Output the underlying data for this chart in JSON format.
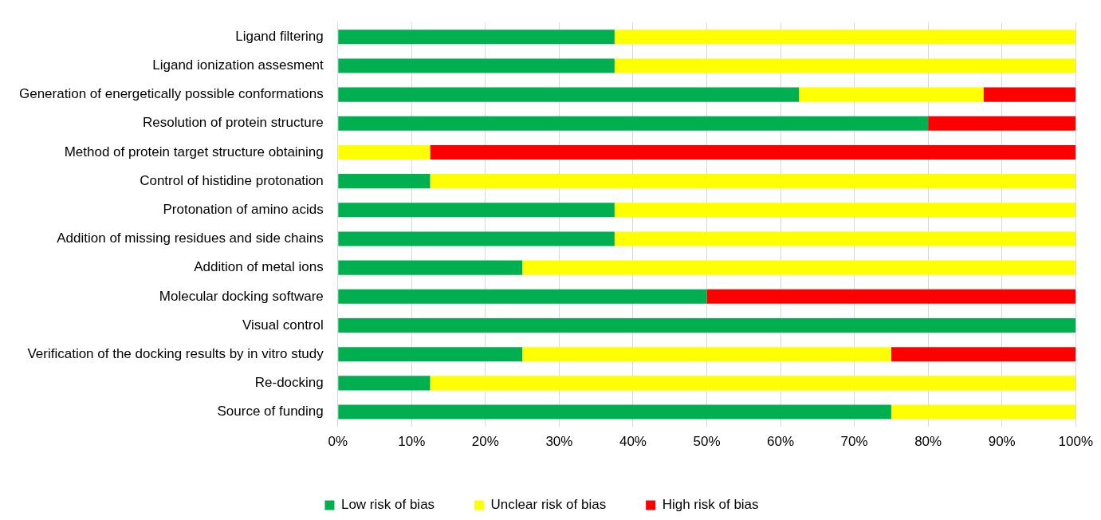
{
  "chart_data": {
    "type": "bar",
    "orientation": "horizontal",
    "stacked": true,
    "categories": [
      "Ligand filtering",
      "Ligand ionization assesment",
      "Generation of energetically possible conformations",
      "Resolution of protein structure",
      "Method of protein target structure obtaining",
      "Control of histidine protonation",
      "Protonation of amino acids",
      "Addition of missing residues and side chains",
      "Addition of metal ions",
      "Molecular docking software",
      "Visual control",
      "Verification of the docking results by in vitro study",
      "Re-docking",
      "Source of funding"
    ],
    "series": [
      {
        "name": "Low risk of bias",
        "color": "#00b050",
        "values": [
          37.5,
          37.5,
          62.5,
          80,
          0,
          12.5,
          37.5,
          37.5,
          25,
          50,
          100,
          25,
          12.5,
          75
        ]
      },
      {
        "name": "Unclear risk of bias",
        "color": "#ffff00",
        "values": [
          62.5,
          62.5,
          25,
          0,
          12.5,
          87.5,
          62.5,
          62.5,
          75,
          0,
          0,
          50,
          87.5,
          25
        ]
      },
      {
        "name": "High risk of bias",
        "color": "#ff0000",
        "values": [
          0,
          0,
          12.5,
          20,
          87.5,
          0,
          0,
          0,
          0,
          50,
          0,
          25,
          0,
          0
        ]
      }
    ],
    "xlim": [
      0,
      100
    ],
    "xticks": [
      {
        "value": 0,
        "label": "0%"
      },
      {
        "value": 10,
        "label": "10%"
      },
      {
        "value": 20,
        "label": "20%"
      },
      {
        "value": 30,
        "label": "30%"
      },
      {
        "value": 40,
        "label": "40%"
      },
      {
        "value": 50,
        "label": "50%"
      },
      {
        "value": 60,
        "label": "60%"
      },
      {
        "value": 70,
        "label": "70%"
      },
      {
        "value": 80,
        "label": "80%"
      },
      {
        "value": 90,
        "label": "90%"
      },
      {
        "value": 100,
        "label": "100%"
      }
    ],
    "grid": "x",
    "legend": "bottom"
  }
}
